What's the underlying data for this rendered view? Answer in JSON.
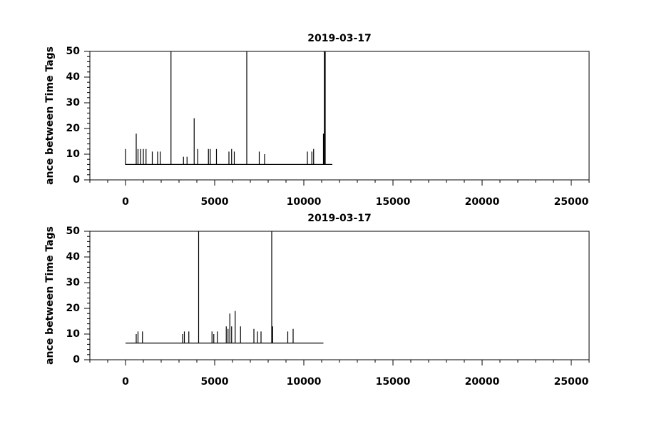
{
  "chart_data": [
    {
      "type": "line",
      "title": "2019-03-17",
      "ylabel": "ance between Time Tags",
      "xlim": [
        -2000,
        26000
      ],
      "xticks": [
        0,
        5000,
        10000,
        15000,
        20000,
        25000
      ],
      "ylim": [
        0,
        50
      ],
      "yticks": [
        0,
        10,
        20,
        30,
        40,
        50
      ],
      "series": [
        {
          "color": "#000000",
          "x": [
            0,
            0,
            0,
            600,
            600,
            600,
            700,
            700,
            700,
            850,
            850,
            850,
            1000,
            1000,
            1000,
            1150,
            1150,
            1150,
            1500,
            1500,
            1500,
            1800,
            1800,
            1800,
            1950,
            1950,
            1950,
            2550,
            2550,
            2550,
            3250,
            3250,
            3250,
            3450,
            3450,
            3450,
            3850,
            3850,
            3850,
            4050,
            4050,
            4050,
            4650,
            4650,
            4650,
            4750,
            4750,
            4750,
            5100,
            5100,
            5100,
            5800,
            5800,
            5800,
            5950,
            5950,
            5950,
            6100,
            6100,
            6100,
            6800,
            6800,
            6800,
            7500,
            7500,
            7500,
            7800,
            7800,
            7800,
            10200,
            10200,
            10200,
            10450,
            10450,
            10450,
            10550,
            10550,
            10550,
            11100,
            11100,
            11100,
            11150,
            11150,
            11150,
            11200,
            11200,
            11200,
            11600
          ],
          "values": [
            6,
            12,
            6,
            6,
            18,
            6,
            6,
            12,
            6,
            6,
            12,
            6,
            6,
            12,
            6,
            6,
            12,
            6,
            6,
            11,
            6,
            6,
            11,
            6,
            6,
            11,
            6,
            6,
            50,
            6,
            6,
            9,
            6,
            6,
            9,
            6,
            6,
            24,
            6,
            6,
            12,
            6,
            6,
            12,
            6,
            6,
            12,
            6,
            6,
            12,
            6,
            6,
            11,
            6,
            6,
            12,
            6,
            6,
            11,
            6,
            6,
            50,
            6,
            6,
            11,
            6,
            6,
            10,
            6,
            6,
            11,
            6,
            6,
            11,
            6,
            6,
            12,
            6,
            6,
            18,
            6,
            6,
            50,
            6,
            6,
            50,
            6,
            6
          ]
        }
      ]
    },
    {
      "type": "line",
      "title": "2019-03-17",
      "ylabel": "ance between Time Tags",
      "xlim": [
        -2000,
        26000
      ],
      "xticks": [
        0,
        5000,
        10000,
        15000,
        20000,
        25000
      ],
      "ylim": [
        0,
        50
      ],
      "yticks": [
        0,
        10,
        20,
        30,
        40,
        50
      ],
      "series": [
        {
          "color": "#000000",
          "x": [
            0,
            600,
            600,
            600,
            700,
            700,
            700,
            950,
            950,
            950,
            3200,
            3200,
            3200,
            3300,
            3300,
            3300,
            3550,
            3550,
            3550,
            4100,
            4100,
            4100,
            4850,
            4850,
            4850,
            4950,
            4950,
            4950,
            5150,
            5150,
            5150,
            5650,
            5650,
            5650,
            5750,
            5750,
            5750,
            5850,
            5850,
            5850,
            5950,
            5950,
            5950,
            6150,
            6150,
            6150,
            6450,
            6450,
            6450,
            7200,
            7200,
            7200,
            7400,
            7400,
            7400,
            7600,
            7600,
            7600,
            8200,
            8200,
            8200,
            8250,
            8250,
            8250,
            9100,
            9100,
            9100,
            9400,
            9400,
            9400,
            11100
          ],
          "values": [
            6.5,
            6.5,
            10,
            6.5,
            6.5,
            11,
            6.5,
            6.5,
            11,
            6.5,
            6.5,
            10,
            6.5,
            6.5,
            11,
            6.5,
            6.5,
            11,
            6.5,
            6.5,
            50,
            6.5,
            6.5,
            11,
            6.5,
            6.5,
            10,
            6.5,
            6.5,
            11,
            6.5,
            6.5,
            13,
            6.5,
            6.5,
            12,
            6.5,
            6.5,
            18,
            6.5,
            6.5,
            13,
            6.5,
            6.5,
            19,
            6.5,
            6.5,
            13,
            6.5,
            6.5,
            12,
            6.5,
            6.5,
            11,
            6.5,
            6.5,
            11,
            6.5,
            6.5,
            50,
            6.5,
            6.5,
            13,
            6.5,
            6.5,
            11,
            6.5,
            6.5,
            12,
            6.5,
            6.5
          ]
        }
      ]
    }
  ]
}
